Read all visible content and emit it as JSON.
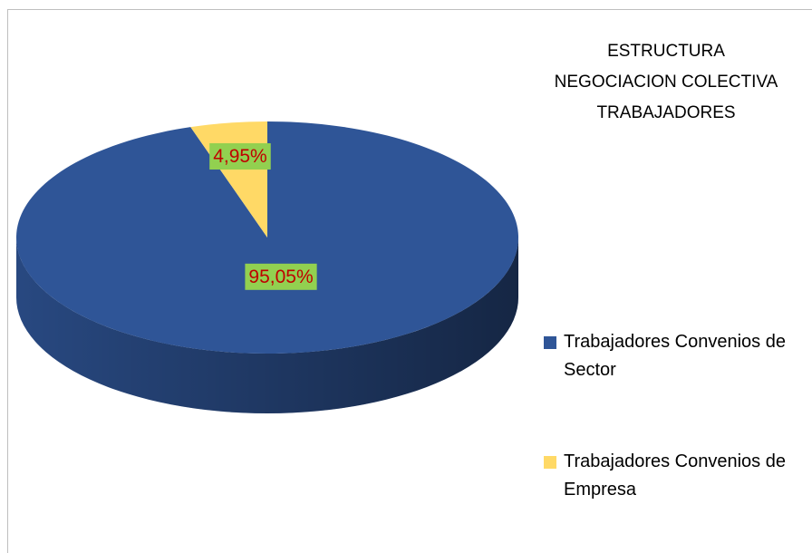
{
  "chart_data": {
    "type": "pie3d",
    "title": "ESTRUCTURA\nNEGOCIACION COLECTIVA\nTRABAJADORES",
    "categories": [
      "Trabajadores Convenios de Sector",
      "Trabajadores Convenios de Empresa"
    ],
    "values": [
      95.05,
      4.95
    ],
    "value_labels": [
      "95,05%",
      "4,95%"
    ],
    "colors": [
      "#2f5597",
      "#ffd966"
    ],
    "legend": "right"
  }
}
